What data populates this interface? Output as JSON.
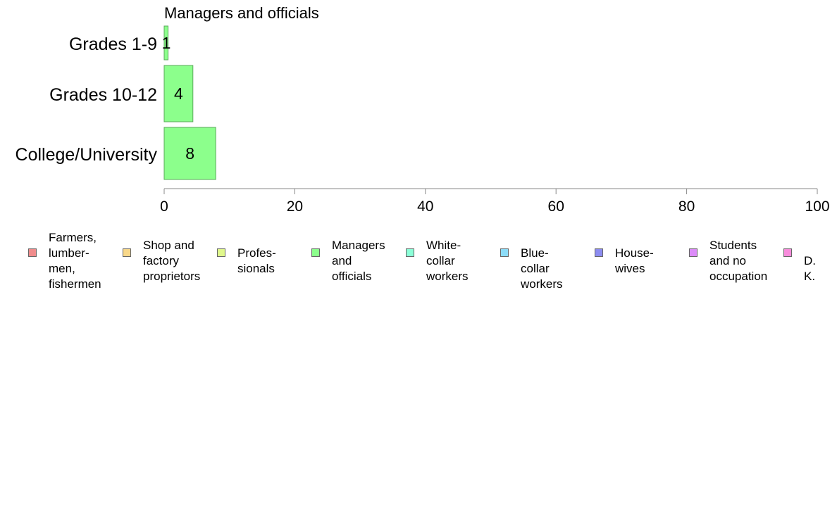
{
  "chart_data": {
    "type": "bar",
    "orientation": "horizontal",
    "title": "Managers and officials",
    "categories": [
      "Grades 1-9",
      "Grades 10-12",
      "College/University"
    ],
    "series": [
      {
        "name": "Managers and officials",
        "values": [
          0.6,
          4.4,
          7.9
        ],
        "data_labels": [
          "1",
          "4",
          "8"
        ],
        "color": "#8cff8c"
      }
    ],
    "xlim": [
      0,
      100
    ],
    "xticks": [
      "0",
      "20",
      "40",
      "60",
      "80",
      "100"
    ],
    "grid": false,
    "legend": {
      "placement": "bottom",
      "items": [
        {
          "label": "Farmers,\nlumber-\nmen,\nfishermen",
          "color": "#f08c8c"
        },
        {
          "label": "Shop and\nfactory\nproprietors",
          "color": "#f8d88a"
        },
        {
          "label": "Profes-\nsionals",
          "color": "#e0f88c"
        },
        {
          "label": "Managers\nand\nofficials",
          "color": "#8cff8c"
        },
        {
          "label": "White-\ncollar\nworkers",
          "color": "#8cffd8"
        },
        {
          "label": "Blue-collar\nworkers",
          "color": "#8cdcf8"
        },
        {
          "label": "House-\nwives",
          "color": "#8c8cf0"
        },
        {
          "label": "Students\nand no\noccupation",
          "color": "#dc8cf8"
        },
        {
          "label": "D. K.",
          "color": "#f88cdc"
        }
      ]
    }
  }
}
